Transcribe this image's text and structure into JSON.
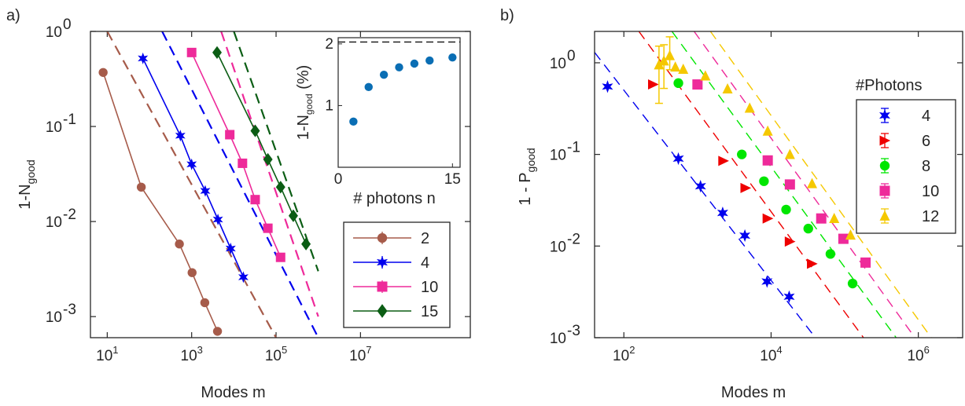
{
  "chart_data": [
    {
      "panel_label": "a)",
      "type": "scatter",
      "xlabel": "Modes m",
      "ylabel_base": "1-N",
      "ylabel_sub": "good",
      "x_scale": "log",
      "y_scale": "log",
      "xlim": [
        4,
        4000000000
      ],
      "ylim": [
        0.0006,
        1
      ],
      "x_ticks": [
        {
          "v": 10,
          "b": "10",
          "e": "1"
        },
        {
          "v": 1000,
          "b": "10",
          "e": "3"
        },
        {
          "v": 100000,
          "b": "10",
          "e": "5"
        },
        {
          "v": 10000000,
          "b": "10",
          "e": "7"
        }
      ],
      "y_ticks": [
        {
          "v": 1,
          "b": "10",
          "e": "0"
        },
        {
          "v": 0.1,
          "b": "10",
          "e": "-1"
        },
        {
          "v": 0.01,
          "b": "10",
          "e": "-2"
        },
        {
          "v": 0.001,
          "b": "10",
          "e": "-3"
        }
      ],
      "grid": false,
      "legend_position": "bottom-right",
      "series": [
        {
          "name": "2",
          "color": "#a65b4a",
          "marker": "circle",
          "x": [
            8,
            64,
            512,
            1024,
            2048,
            4096
          ],
          "y": [
            0.37,
            0.023,
            0.0058,
            0.0029,
            0.0014,
            0.0007
          ],
          "fit": {
            "x1": 10,
            "y1": 1.0,
            "x2": 100000,
            "y2": 0.0006
          }
        },
        {
          "name": "4",
          "color": "#0000ee",
          "marker": "star",
          "x": [
            70,
            540,
            1000,
            2100,
            4200,
            8400,
            16800
          ],
          "y": [
            0.52,
            0.08,
            0.04,
            0.021,
            0.0105,
            0.0052,
            0.0026
          ],
          "fit": {
            "x1": 200,
            "y1": 1.0,
            "x2": 1000000,
            "y2": 0.0006
          }
        },
        {
          "name": "10",
          "color": "#ee2a9a",
          "marker": "square",
          "x": [
            1000,
            8000,
            16000,
            32000,
            64000,
            128000
          ],
          "y": [
            0.6,
            0.082,
            0.041,
            0.017,
            0.0085,
            0.0042
          ],
          "fit": {
            "x1": 5000,
            "y1": 1.0,
            "x2": 1000000,
            "y2": 0.001
          }
        },
        {
          "name": "15",
          "color": "#0b5d14",
          "marker": "diamond",
          "x": [
            4000,
            32000,
            64000,
            128000,
            256000,
            512000
          ],
          "y": [
            0.6,
            0.09,
            0.045,
            0.023,
            0.0115,
            0.0058
          ],
          "fit": {
            "x1": 10000,
            "y1": 1.0,
            "x2": 1000000,
            "y2": 0.003
          }
        }
      ],
      "inset": {
        "xlabel": "# photons n",
        "ylabel_base": "1-N",
        "ylabel_sub": "good",
        "ylabel_suffix": " (%)",
        "xlim": [
          0,
          16
        ],
        "ylim": [
          0,
          2.1
        ],
        "x_ticks": [
          0,
          15
        ],
        "y_ticks": [
          1,
          2
        ],
        "reference_line": 2.03,
        "color": "#0a6eb4",
        "x": [
          2,
          4,
          6,
          8,
          10,
          12,
          15
        ],
        "y": [
          0.74,
          1.3,
          1.5,
          1.62,
          1.68,
          1.73,
          1.78
        ]
      }
    },
    {
      "panel_label": "b)",
      "type": "scatter",
      "xlabel": "Modes m",
      "ylabel_base": "1 - P",
      "ylabel_sub": "good",
      "x_scale": "log",
      "y_scale": "log",
      "xlim": [
        40,
        4000000
      ],
      "ylim": [
        0.001,
        2.2
      ],
      "x_ticks": [
        {
          "v": 100,
          "b": "10",
          "e": "2"
        },
        {
          "v": 10000,
          "b": "10",
          "e": "4"
        },
        {
          "v": 1000000,
          "b": "10",
          "e": "6"
        }
      ],
      "y_ticks": [
        {
          "v": 1,
          "b": "10",
          "e": "0"
        },
        {
          "v": 0.1,
          "b": "10",
          "e": "-1"
        },
        {
          "v": 0.01,
          "b": "10",
          "e": "-2"
        },
        {
          "v": 0.001,
          "b": "10",
          "e": "-3"
        }
      ],
      "grid": false,
      "legend_title": "#Photons",
      "legend_position": "top-right",
      "series": [
        {
          "name": "4",
          "color": "#0000ee",
          "marker": "star",
          "x": [
            60,
            550,
            1100,
            2200,
            4400,
            8800,
            17600
          ],
          "y": [
            0.55,
            0.09,
            0.045,
            0.023,
            0.013,
            0.0041,
            0.0028
          ],
          "fit": {
            "x1": 40,
            "y1": 1.3,
            "x2": 40000,
            "y2": 0.001
          }
        },
        {
          "name": "6",
          "color": "#ee0000",
          "marker": "triangle-right",
          "x": [
            250,
            2250,
            4500,
            9000,
            18000,
            36000
          ],
          "y": [
            0.58,
            0.085,
            0.043,
            0.02,
            0.0112,
            0.0064
          ],
          "fit": {
            "x1": 160,
            "y1": 2.2,
            "x2": 180000,
            "y2": 0.001
          }
        },
        {
          "name": "8",
          "color": "#00e600",
          "marker": "circle",
          "x": [
            550,
            4000,
            8000,
            16000,
            32000,
            64000,
            128000
          ],
          "y": [
            0.6,
            0.1,
            0.051,
            0.025,
            0.0155,
            0.0082,
            0.0039
          ],
          "fit": {
            "x1": 450,
            "y1": 2.2,
            "x2": 500000,
            "y2": 0.001
          }
        },
        {
          "name": "10",
          "color": "#ee2a9a",
          "marker": "square",
          "x": [
            1000,
            9000,
            18000,
            48000,
            96000,
            192000
          ],
          "y": [
            0.58,
            0.086,
            0.047,
            0.02,
            0.012,
            0.0066
          ],
          "fit": {
            "x1": 900,
            "y1": 2.2,
            "x2": 900000,
            "y2": 0.001
          }
        },
        {
          "name": "12",
          "color": "#f5c800",
          "marker": "triangle-up",
          "x": [
            300,
            350,
            420,
            500,
            640,
            1280,
            2560,
            5120,
            9000,
            18000,
            36000,
            72000,
            120000
          ],
          "y": [
            0.95,
            1.05,
            1.2,
            0.9,
            0.85,
            0.72,
            0.52,
            0.32,
            0.18,
            0.1,
            0.048,
            0.02,
            0.0132
          ],
          "fit": {
            "x1": 1500,
            "y1": 2.2,
            "x2": 1500000,
            "y2": 0.001
          }
        }
      ]
    }
  ]
}
